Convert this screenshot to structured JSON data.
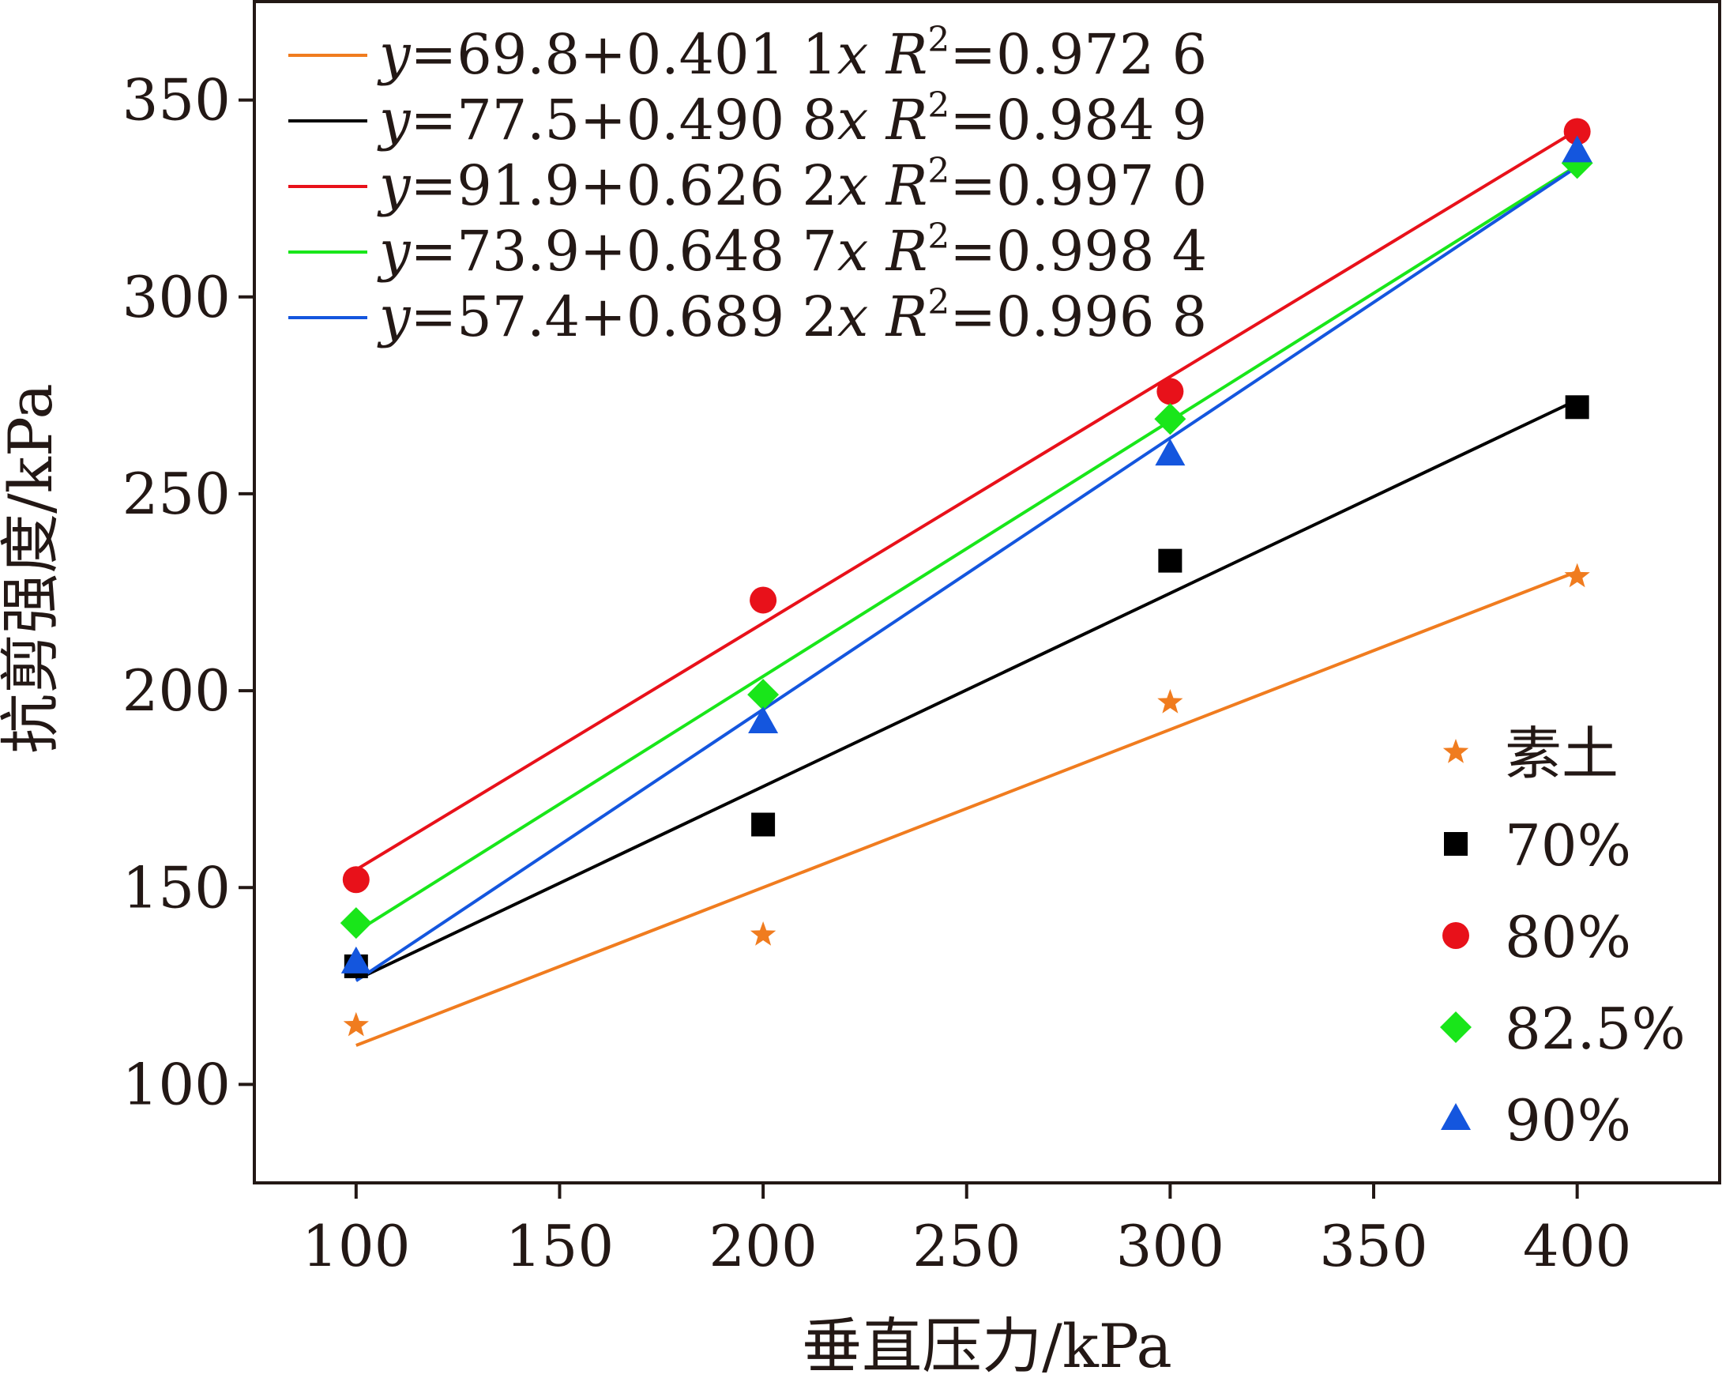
{
  "chart_data": {
    "type": "scatter",
    "xlabel": "垂直压力/kPa",
    "ylabel": "抗剪强度/kPa",
    "xlim": [
      75,
      435
    ],
    "ylim": [
      75,
      375
    ],
    "xticks": [
      100,
      150,
      200,
      250,
      300,
      350,
      400
    ],
    "yticks": [
      100,
      150,
      200,
      250,
      300,
      350
    ],
    "xtick_labels": [
      "100",
      "150",
      "200",
      "250",
      "300",
      "350",
      "400"
    ],
    "ytick_labels": [
      "100",
      "150",
      "200",
      "250",
      "300",
      "350"
    ],
    "grid": false,
    "legend_placement": "bottom-right",
    "fit_legend_placement": "top-left",
    "x": [
      100,
      200,
      300,
      400
    ],
    "series": [
      {
        "name": "素土",
        "color": "#f07c1f",
        "marker": "star",
        "values": [
          115,
          138,
          197,
          229
        ],
        "fit": {
          "intercept": 69.8,
          "slope": 0.4011,
          "y_label": "y",
          "eq_text": "=69.8+0.401 1",
          "x_label": "x",
          "r_label": "R",
          "r_sup": "2",
          "r_text": "=0.972 6"
        }
      },
      {
        "name": "70%",
        "color": "#000000",
        "marker": "square",
        "values": [
          130,
          166,
          233,
          272
        ],
        "fit": {
          "intercept": 77.5,
          "slope": 0.4908,
          "y_label": "y",
          "eq_text": "=77.5+0.490 8",
          "x_label": "x",
          "r_label": "R",
          "r_sup": "2",
          "r_text": "=0.984 9"
        }
      },
      {
        "name": "80%",
        "color": "#e8111a",
        "marker": "circle",
        "values": [
          152,
          223,
          276,
          342
        ],
        "fit": {
          "intercept": 91.9,
          "slope": 0.6262,
          "y_label": "y",
          "eq_text": "=91.9+0.626 2",
          "x_label": "x",
          "r_label": "R",
          "r_sup": "2",
          "r_text": "=0.997 0"
        }
      },
      {
        "name": "82.5%",
        "color": "#19e61a",
        "marker": "diamond",
        "values": [
          141,
          199,
          269,
          334
        ],
        "fit": {
          "intercept": 73.9,
          "slope": 0.6487,
          "y_label": "y",
          "eq_text": "=73.9+0.648 7",
          "x_label": "x",
          "r_label": "R",
          "r_sup": "2",
          "r_text": "=0.998 4"
        }
      },
      {
        "name": "90%",
        "color": "#1456de",
        "marker": "triangle",
        "values": [
          131,
          192,
          260,
          337
        ],
        "fit": {
          "intercept": 57.4,
          "slope": 0.6892,
          "y_label": "y",
          "eq_text": "=57.4+0.689 2",
          "x_label": "x",
          "r_label": "R",
          "r_sup": "2",
          "r_text": "=0.996 8"
        }
      }
    ]
  }
}
